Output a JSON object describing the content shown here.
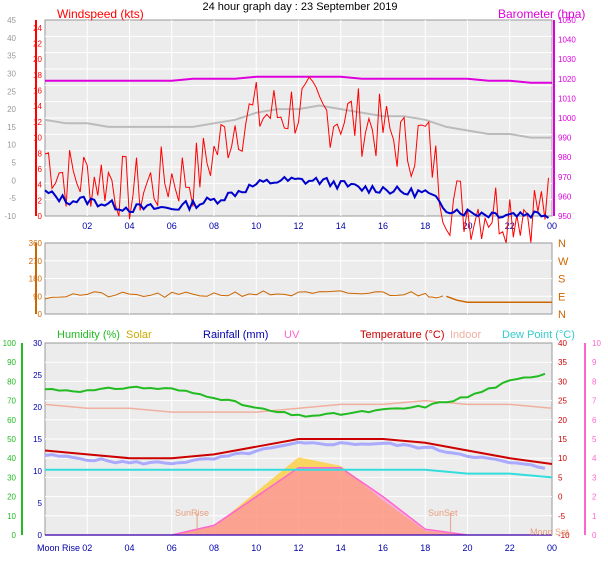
{
  "title": "24 hour graph day : 23 September 2019",
  "colors": {
    "wind": "#ff0000",
    "gust": "#ff0000",
    "avg": "#0000cc",
    "baro": "#dd00dd",
    "temp_gray": "#bbbbbb",
    "dir": "#cc6600",
    "humidity": "#22bb22",
    "solar": "#ffcc33",
    "rain": "#0000aa",
    "uv": "#ff66cc",
    "temperature": "#cc0000",
    "indoor": "#f0b0a0",
    "dewpoint": "#33dddd",
    "panel_bg": "#ececec",
    "axis_left": "#999999"
  },
  "chart_data": [
    {
      "type": "line",
      "title": "24 hour graph day : 23 September 2019",
      "legend": [
        "Windspeed (kts)",
        "Barometer (hpa)"
      ],
      "x_ticks": [
        "02",
        "04",
        "06",
        "08",
        "10",
        "12",
        "14",
        "16",
        "18",
        "20",
        "22",
        "00"
      ],
      "y_left_ticks": [
        "24",
        "22",
        "20",
        "18",
        "16",
        "14",
        "12",
        "10",
        "8",
        "6",
        "4",
        "2",
        "0"
      ],
      "y_left_outer_ticks": [
        "45",
        "40",
        "35",
        "30",
        "25",
        "20",
        "15",
        "10",
        "5",
        "0",
        "-5",
        "-10"
      ],
      "y_right_ticks": [
        "1050",
        "1040",
        "1030",
        "1020",
        "1010",
        "1000",
        "990",
        "980",
        "970",
        "960",
        "950"
      ],
      "ylim_left": [
        0,
        25
      ],
      "ylim_right": [
        950,
        1050
      ],
      "x_hours": [
        0,
        1,
        2,
        3,
        4,
        5,
        6,
        7,
        8,
        9,
        10,
        11,
        12,
        13,
        14,
        15,
        16,
        17,
        18,
        19,
        20,
        21,
        22,
        23,
        24
      ],
      "series": [
        {
          "name": "Windspeed (kts)",
          "values": [
            8,
            5,
            5,
            5,
            3,
            4,
            5,
            5,
            8,
            12,
            13,
            13,
            14,
            13,
            13,
            12,
            11,
            9,
            10,
            2,
            1,
            1,
            1,
            1,
            1
          ]
        },
        {
          "name": "Barometer (hpa)",
          "values": [
            1019,
            1019,
            1019,
            1019,
            1019,
            1019,
            1019,
            1020,
            1020,
            1020,
            1021,
            1021,
            1021,
            1021,
            1021,
            1020,
            1020,
            1020,
            1020,
            1020,
            1020,
            1019,
            1019,
            1018,
            1018
          ]
        },
        {
          "values": [
            3,
            2,
            2,
            1.5,
            1,
            1,
            1,
            1.5,
            2,
            3,
            4,
            4.5,
            4.5,
            4.5,
            4,
            3.5,
            3.5,
            3,
            3,
            1,
            0.5,
            0.3,
            0.3,
            0.3,
            0.3
          ]
        },
        {
          "values": [
            17,
            16,
            16,
            15,
            15,
            15,
            15,
            15,
            16,
            17,
            19,
            20,
            20,
            21,
            20,
            19,
            18,
            18,
            17,
            15,
            14,
            13,
            13,
            12,
            12
          ]
        }
      ]
    },
    {
      "type": "line",
      "y_left_ticks": [
        "360",
        "270",
        "180",
        "90",
        "0"
      ],
      "y_right_ticks": [
        "N",
        "W",
        "S",
        "E",
        "N"
      ],
      "ylim": [
        0,
        360
      ],
      "x_hours": [
        0,
        2,
        4,
        6,
        8,
        10,
        12,
        14,
        16,
        18,
        19,
        19.5,
        20,
        22,
        24
      ],
      "series": [
        {
          "values": [
            90,
            100,
            95,
            95,
            100,
            105,
            100,
            105,
            105,
            100,
            90,
            70,
            60,
            60,
            60
          ]
        }
      ]
    },
    {
      "type": "line",
      "legend": [
        "Humidity (%)",
        "Solar",
        "Rainfall (mm)",
        "UV",
        "Temperature (°C)",
        "Indoor",
        "Dew Point (°C)"
      ],
      "x_ticks": [
        "02",
        "04",
        "06",
        "08",
        "10",
        "12",
        "14",
        "16",
        "18",
        "20",
        "22",
        "00"
      ],
      "y_humidity_ticks": [
        "100",
        "90",
        "80",
        "70",
        "60",
        "50",
        "40",
        "30",
        "20",
        "10",
        "0"
      ],
      "y_rain_ticks": [
        "30",
        "25",
        "20",
        "15",
        "10",
        "5",
        "0"
      ],
      "y_temp_ticks": [
        "40",
        "35",
        "30",
        "25",
        "20",
        "15",
        "10",
        "5",
        "0",
        "-5",
        "-10"
      ],
      "y_uv_ticks": [
        "10",
        "9",
        "8",
        "7",
        "6",
        "5",
        "4",
        "3",
        "2",
        "1",
        "0"
      ],
      "annotations": [
        "SunRise",
        "SunSet",
        "Moon Rise",
        "Moon Set"
      ],
      "x_hours": [
        0,
        2,
        4,
        6,
        8,
        10,
        12,
        14,
        16,
        18,
        20,
        22,
        24
      ],
      "series": [
        {
          "name": "Humidity (%)",
          "values": [
            76,
            75,
            77,
            76,
            72,
            66,
            62,
            63,
            65,
            67,
            72,
            80,
            85
          ]
        },
        {
          "name": "Temperature (°C)",
          "values": [
            12,
            11,
            10,
            10,
            11,
            13,
            15,
            15,
            15,
            14,
            12,
            10,
            8.5
          ]
        },
        {
          "name": "Indoor",
          "values": [
            24,
            23,
            23,
            22,
            22,
            22,
            23,
            24,
            24,
            25,
            24,
            24,
            23
          ]
        },
        {
          "name": "Dew Point (°C)",
          "values": [
            7,
            7,
            7,
            7,
            7,
            7,
            7,
            7,
            7,
            7,
            6,
            6,
            5
          ]
        },
        {
          "name": "UV",
          "values": [
            0,
            0,
            0,
            0,
            0.5,
            2,
            3.5,
            3.5,
            2,
            0.3,
            0,
            0,
            0
          ]
        },
        {
          "name": "Solar",
          "values": [
            0,
            0,
            0,
            0,
            10,
            50,
            90,
            80,
            40,
            5,
            0,
            0,
            0
          ]
        },
        {
          "name": "Rainfall (mm)",
          "values": [
            0,
            0,
            0,
            0,
            0,
            0,
            0,
            0,
            0,
            0,
            0,
            0,
            0
          ]
        }
      ]
    }
  ]
}
